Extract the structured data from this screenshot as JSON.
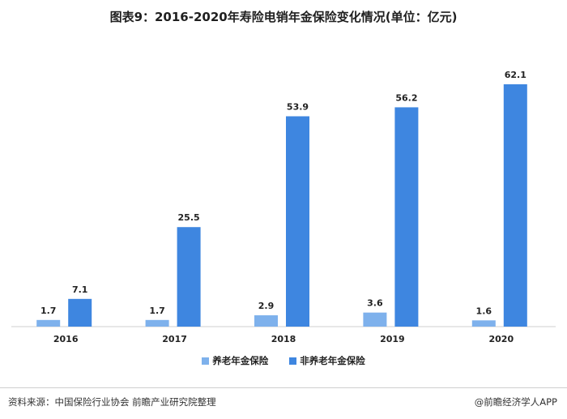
{
  "title": "图表9：2016-2020年寿险电销年金保险变化情况(单位：亿元)",
  "chart_data": {
    "type": "bar",
    "categories": [
      "2016",
      "2017",
      "2018",
      "2019",
      "2020"
    ],
    "series": [
      {
        "name": "养老年金保险",
        "values": [
          1.7,
          1.7,
          2.9,
          3.6,
          1.6
        ],
        "color": "#7EB1EC"
      },
      {
        "name": "非养老年金保险",
        "values": [
          7.1,
          25.5,
          53.9,
          56.2,
          62.1
        ],
        "color": "#3E86E0"
      }
    ],
    "ylim": [
      0,
      62.1
    ],
    "grid": false,
    "legend_position": "bottom"
  },
  "footer": {
    "source": "资料来源：中国保险行业协会 前瞻产业研究院整理",
    "credit": "@前瞻经济学人APP"
  }
}
